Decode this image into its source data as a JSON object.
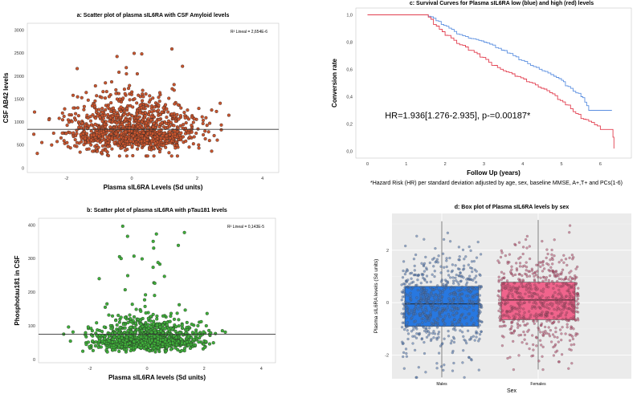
{
  "chart_data": [
    {
      "id": "a",
      "type": "scatter",
      "title": "a: Scatter plot of plasma sIL6RA with CSF Amyloid levels",
      "xlabel": "Plasma sIL6RA Levels (Sd units)",
      "ylabel": "CSF AB42 levels",
      "xlim": [
        -3.2,
        4.5
      ],
      "ylim": [
        -100,
        3150
      ],
      "xticks": [
        -2,
        0,
        2,
        4
      ],
      "yticks": [
        0,
        500,
        1000,
        1500,
        2000,
        2500,
        3000
      ],
      "annotation": "R² Lineal = 2,654E-6",
      "fit_line": {
        "x": [
          -3.2,
          4.5
        ],
        "y": [
          840,
          840
        ]
      },
      "point_color": "#c8552e",
      "point_cloud": {
        "n": 1200,
        "x_mean": 0,
        "x_sd": 0.95,
        "y_center": 780,
        "y_sd_low": 200,
        "y_sd_high": 380,
        "y_min": 260,
        "y_max": 2600
      }
    },
    {
      "id": "b",
      "type": "scatter",
      "title": "b: Scatter plot of plasma sIL6RA with pTau181 levels",
      "xlabel": "Plasma sIL6RA levels (Sd units)",
      "ylabel": "Phosphotau181 in CSF",
      "xlim": [
        -3.8,
        4.5
      ],
      "ylim": [
        -10,
        420
      ],
      "xticks": [
        -2,
        0,
        2,
        4
      ],
      "yticks": [
        0,
        100,
        200,
        300,
        400
      ],
      "annotation": "R² Lineal = 0,143E-5",
      "fit_line": {
        "x": [
          -3.8,
          4.5
        ],
        "y": [
          75,
          75
        ]
      },
      "point_color": "#3fae3a",
      "point_cloud": {
        "n": 1200,
        "x_mean": 0,
        "x_sd": 0.95,
        "y_center": 55,
        "y_sd_low": 12,
        "y_sd_high": 35,
        "y_min": 22,
        "y_max": 400
      }
    },
    {
      "id": "c",
      "type": "line",
      "title": "c: Survival Curves for Plasma sIL6RA low (blue) and high (red) levels",
      "xlabel": "Follow Up (years)",
      "ylabel": "Conversion rate",
      "xlim": [
        -0.3,
        6.8
      ],
      "ylim": [
        -0.05,
        1.05
      ],
      "xticks": [
        0,
        1,
        2,
        3,
        4,
        5,
        6
      ],
      "yticks": [
        0.0,
        0.2,
        0.4,
        0.6,
        0.8,
        1.0
      ],
      "ytick_labels": [
        "0,0",
        "0,2",
        "0,4",
        "0,6",
        "0,8",
        "1,0"
      ],
      "annotation": "HR=1.936[1.276-2.935], p-=0.00187*",
      "footnote": "*Hazard Risk (HR) per standard deviation adjusted by age, sex, baseline MMSE, A+,T+ and PCs(1-6)",
      "series": [
        {
          "name": "low",
          "color": "#5b8fe0",
          "x": [
            0,
            1.5,
            1.9,
            2.3,
            2.6,
            3.0,
            3.3,
            3.6,
            3.9,
            4.2,
            4.5,
            4.8,
            5.0,
            5.1,
            5.3,
            5.5,
            5.6,
            5.7,
            6.0,
            6.3
          ],
          "y": [
            1.0,
            1.0,
            0.93,
            0.86,
            0.83,
            0.8,
            0.76,
            0.72,
            0.67,
            0.63,
            0.59,
            0.55,
            0.52,
            0.48,
            0.44,
            0.4,
            0.36,
            0.3,
            0.3,
            0.3
          ]
        },
        {
          "name": "high",
          "color": "#e23e4f",
          "x": [
            0,
            1.5,
            1.7,
            2.0,
            2.3,
            2.6,
            2.9,
            3.2,
            3.5,
            3.8,
            4.1,
            4.4,
            4.7,
            4.9,
            5.1,
            5.3,
            5.5,
            5.7,
            6.0,
            6.3,
            6.35
          ],
          "y": [
            1.0,
            1.0,
            0.93,
            0.85,
            0.79,
            0.74,
            0.69,
            0.63,
            0.59,
            0.55,
            0.51,
            0.47,
            0.43,
            0.38,
            0.34,
            0.29,
            0.24,
            0.22,
            0.16,
            0.16,
            0.02
          ]
        }
      ]
    },
    {
      "id": "d",
      "type": "box",
      "title": "d: Box plot of Plasma sIL6RA levels by sex",
      "xlabel": "Sex",
      "ylabel": "Plasma sIL6RA levels (Sd units)",
      "categories": [
        "Males",
        "Females"
      ],
      "ylim": [
        -2.9,
        3.4
      ],
      "yticks": [
        -2,
        0,
        2
      ],
      "ytick_labels": [
        "-2",
        "0",
        "2"
      ],
      "boxes": [
        {
          "name": "Males",
          "color": "#2878e0",
          "point_color": "#4a6fa8",
          "q1": -0.9,
          "median": -0.05,
          "q3": 0.62,
          "lower_whisker": -2.85,
          "upper_whisker": 3.1
        },
        {
          "name": "Females",
          "color": "#f0648c",
          "point_color": "#b04a6a",
          "q1": -0.65,
          "median": 0.1,
          "q3": 0.78,
          "lower_whisker": -2.55,
          "upper_whisker": 3.15
        }
      ]
    }
  ]
}
